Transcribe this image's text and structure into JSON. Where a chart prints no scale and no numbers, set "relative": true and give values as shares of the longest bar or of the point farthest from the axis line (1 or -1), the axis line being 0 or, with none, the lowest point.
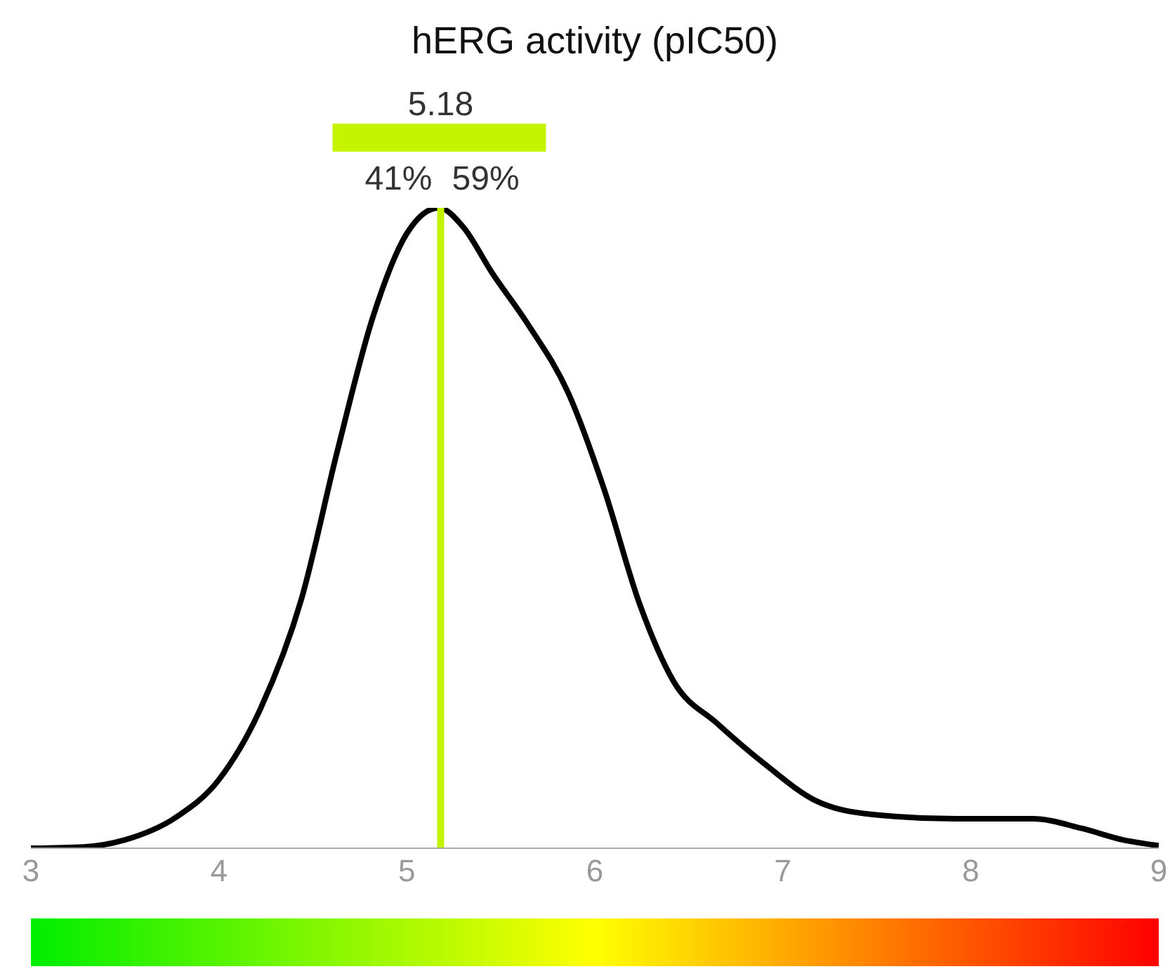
{
  "chart_data": {
    "type": "line",
    "title": "hERG activity (pIC50)",
    "relative": true,
    "x": [
      3.0,
      3.28,
      3.5,
      3.77,
      4.0,
      4.22,
      4.44,
      4.63,
      4.82,
      5.0,
      5.17,
      5.3,
      5.45,
      5.64,
      5.86,
      6.05,
      6.24,
      6.42,
      6.65,
      6.91,
      7.17,
      7.47,
      7.92,
      8.33,
      8.59,
      8.81,
      9.0
    ],
    "series": [
      {
        "color": "#000000",
        "values": [
          0,
          0.002,
          0.013,
          0.048,
          0.107,
          0.217,
          0.39,
          0.62,
          0.83,
          0.96,
          1.0,
          0.97,
          0.9,
          0.82,
          0.71,
          0.56,
          0.38,
          0.26,
          0.195,
          0.13,
          0.075,
          0.053,
          0.046,
          0.046,
          0.031,
          0.013,
          0.004
        ]
      }
    ],
    "xlim": [
      3,
      9
    ],
    "xticks": [
      3,
      4,
      5,
      6,
      7,
      8,
      9
    ],
    "ref_lines": [
      {
        "axis": "x",
        "value": 5.18,
        "label": "5.18",
        "color": "#c6f400"
      }
    ],
    "annotations": [
      "41%",
      "59%"
    ],
    "marker": "none",
    "line_style": "solid",
    "grid": false,
    "legend": false
  }
}
